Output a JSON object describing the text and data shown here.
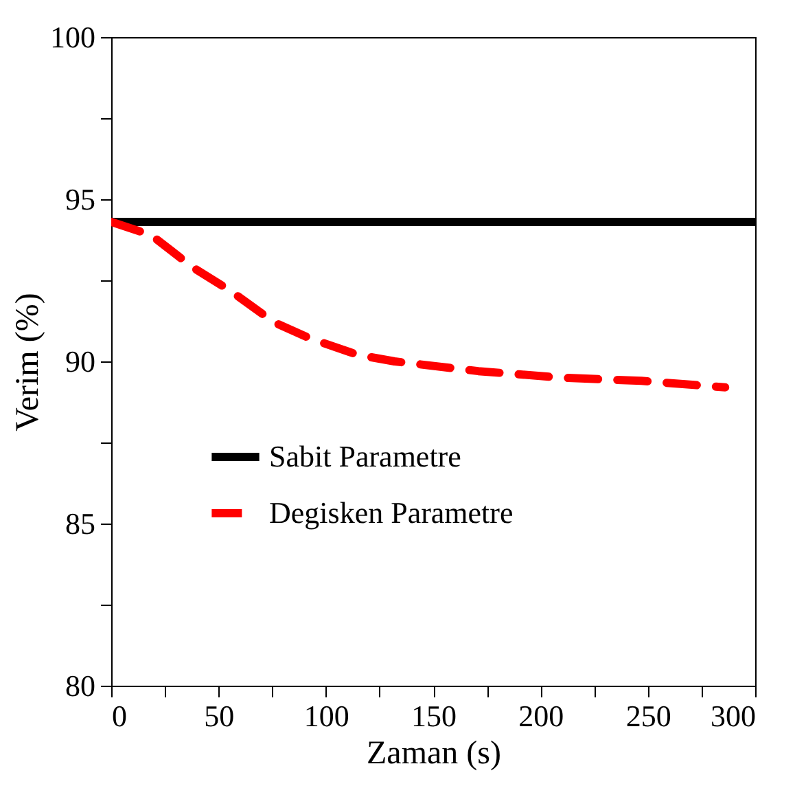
{
  "chart_data": {
    "type": "line",
    "xlabel": "Zaman (s)",
    "ylabel": "Verim (%)",
    "x": [
      0,
      18.5,
      38,
      55,
      76,
      93,
      115,
      132,
      171,
      209,
      247,
      286
    ],
    "series": [
      {
        "name": "Sabit Parametre",
        "color": "#000000",
        "line_style": "solid",
        "x": [
          0,
          300
        ],
        "values": [
          94.3,
          94.3
        ]
      },
      {
        "name": "Degisken Parametre",
        "color": "#ff0000",
        "line_style": "dashed",
        "values": [
          94.3,
          93.9,
          92.9,
          92.2,
          91.2,
          90.7,
          90.2,
          90.0,
          89.7,
          89.5,
          89.4,
          89.2
        ]
      }
    ],
    "xlim": [
      0,
      300
    ],
    "xticks": [
      0,
      {
        "value": 25,
        "label": null
      },
      50,
      {
        "value": 75,
        "label": null
      },
      100,
      {
        "value": 125,
        "label": null
      },
      150,
      {
        "value": 175,
        "label": null
      },
      200,
      {
        "value": 225,
        "label": null
      },
      250,
      {
        "value": 275,
        "label": null
      },
      300
    ],
    "ylim": [
      80,
      100
    ],
    "yticks": [
      80,
      {
        "value": 82.5,
        "label": null
      },
      85,
      {
        "value": 87.5,
        "label": null
      },
      90,
      {
        "value": 92.5,
        "label": null
      },
      95,
      {
        "value": 97.5,
        "label": null
      },
      100
    ],
    "grid": false,
    "legend": "left",
    "marker": "none"
  }
}
